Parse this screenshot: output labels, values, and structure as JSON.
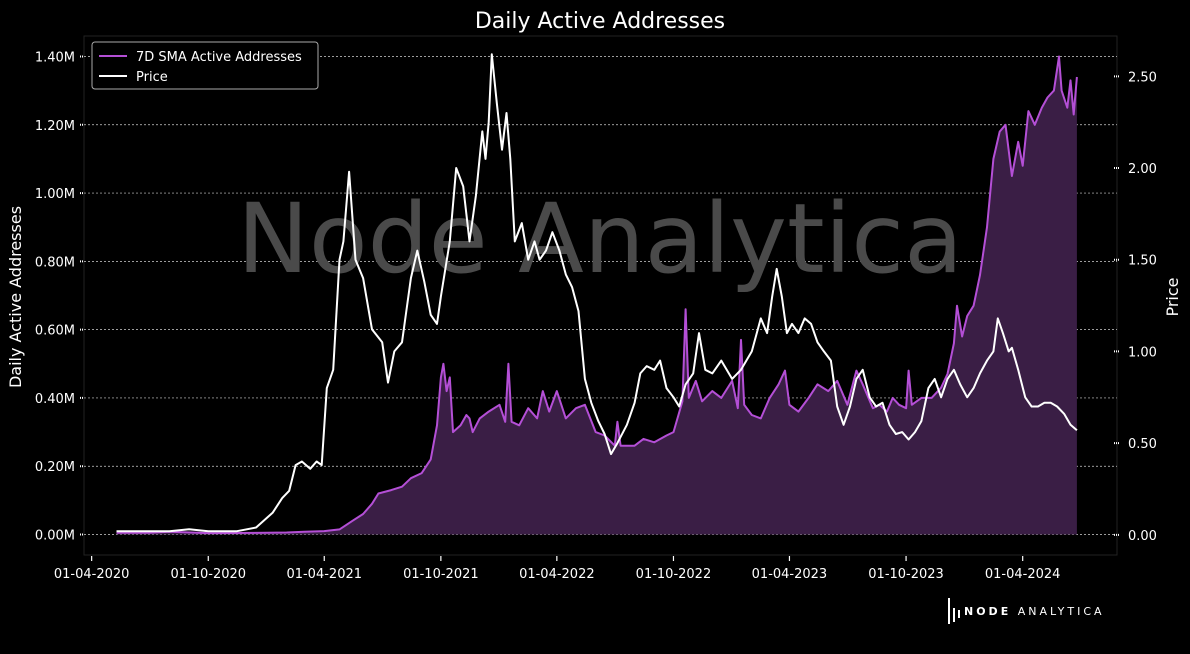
{
  "chart_data": {
    "type": "area",
    "title": "Daily Active Addresses",
    "watermark": "Node Analytica",
    "y_left_label": "Daily Active Addresses",
    "y_right_label": "Price",
    "left_ylim": [
      -60000,
      1460000
    ],
    "right_ylim": [
      -0.11,
      2.72
    ],
    "xlim": [
      "2020-03-20",
      "2024-08-27"
    ],
    "left_ticks": [
      {
        "value": 0,
        "label": "0.00M"
      },
      {
        "value": 200000,
        "label": "0.20M"
      },
      {
        "value": 400000,
        "label": "0.40M"
      },
      {
        "value": 600000,
        "label": "0.60M"
      },
      {
        "value": 800000,
        "label": "0.80M"
      },
      {
        "value": 1000000,
        "label": "1.00M"
      },
      {
        "value": 1200000,
        "label": "1.20M"
      },
      {
        "value": 1400000,
        "label": "1.40M"
      }
    ],
    "right_ticks": [
      {
        "value": 0.0,
        "label": "0.00"
      },
      {
        "value": 0.5,
        "label": "0.50"
      },
      {
        "value": 1.0,
        "label": "1.00"
      },
      {
        "value": 1.5,
        "label": "1.50"
      },
      {
        "value": 2.0,
        "label": "2.00"
      },
      {
        "value": 2.5,
        "label": "2.50"
      }
    ],
    "x_ticks": [
      {
        "value": "2020-04-01",
        "label": "01-04-2020"
      },
      {
        "value": "2020-10-01",
        "label": "01-10-2020"
      },
      {
        "value": "2021-04-01",
        "label": "01-04-2021"
      },
      {
        "value": "2021-10-01",
        "label": "01-10-2021"
      },
      {
        "value": "2022-04-01",
        "label": "01-04-2022"
      },
      {
        "value": "2022-10-01",
        "label": "01-10-2022"
      },
      {
        "value": "2023-04-01",
        "label": "01-04-2023"
      },
      {
        "value": "2023-10-01",
        "label": "01-10-2023"
      },
      {
        "value": "2024-04-01",
        "label": "01-04-2024"
      }
    ],
    "grid": "horizontal dashed",
    "legend_position": "top-left",
    "series": [
      {
        "name": "7D SMA Active Addresses",
        "axis": "left",
        "color": "#b44fd6",
        "fill": "#3a1e45",
        "points": [
          [
            "2020-05-10",
            5000
          ],
          [
            "2020-07-01",
            5000
          ],
          [
            "2020-08-01",
            8000
          ],
          [
            "2020-10-01",
            4000
          ],
          [
            "2021-01-01",
            5000
          ],
          [
            "2021-02-01",
            6000
          ],
          [
            "2021-03-01",
            8000
          ],
          [
            "2021-04-01",
            10000
          ],
          [
            "2021-04-25",
            15000
          ],
          [
            "2021-05-15",
            40000
          ],
          [
            "2021-06-01",
            60000
          ],
          [
            "2021-06-15",
            90000
          ],
          [
            "2021-06-25",
            120000
          ],
          [
            "2021-07-15",
            130000
          ],
          [
            "2021-08-01",
            140000
          ],
          [
            "2021-08-15",
            165000
          ],
          [
            "2021-09-01",
            180000
          ],
          [
            "2021-09-15",
            220000
          ],
          [
            "2021-09-25",
            320000
          ],
          [
            "2021-10-01",
            460000
          ],
          [
            "2021-10-05",
            500000
          ],
          [
            "2021-10-10",
            420000
          ],
          [
            "2021-10-15",
            460000
          ],
          [
            "2021-10-20",
            300000
          ],
          [
            "2021-11-01",
            320000
          ],
          [
            "2021-11-10",
            350000
          ],
          [
            "2021-11-15",
            340000
          ],
          [
            "2021-11-20",
            300000
          ],
          [
            "2021-12-01",
            340000
          ],
          [
            "2021-12-15",
            360000
          ],
          [
            "2022-01-01",
            380000
          ],
          [
            "2022-01-10",
            330000
          ],
          [
            "2022-01-15",
            500000
          ],
          [
            "2022-01-20",
            330000
          ],
          [
            "2022-02-01",
            320000
          ],
          [
            "2022-02-15",
            370000
          ],
          [
            "2022-03-01",
            340000
          ],
          [
            "2022-03-10",
            420000
          ],
          [
            "2022-03-20",
            360000
          ],
          [
            "2022-04-01",
            420000
          ],
          [
            "2022-04-15",
            340000
          ],
          [
            "2022-05-01",
            370000
          ],
          [
            "2022-05-15",
            380000
          ],
          [
            "2022-06-01",
            300000
          ],
          [
            "2022-06-15",
            290000
          ],
          [
            "2022-07-01",
            260000
          ],
          [
            "2022-07-05",
            330000
          ],
          [
            "2022-07-10",
            260000
          ],
          [
            "2022-08-01",
            260000
          ],
          [
            "2022-08-15",
            280000
          ],
          [
            "2022-09-01",
            270000
          ],
          [
            "2022-09-20",
            290000
          ],
          [
            "2022-10-01",
            300000
          ],
          [
            "2022-10-15",
            390000
          ],
          [
            "2022-10-20",
            660000
          ],
          [
            "2022-10-25",
            400000
          ],
          [
            "2022-11-05",
            450000
          ],
          [
            "2022-11-15",
            390000
          ],
          [
            "2022-12-01",
            420000
          ],
          [
            "2022-12-15",
            400000
          ],
          [
            "2023-01-01",
            450000
          ],
          [
            "2023-01-10",
            370000
          ],
          [
            "2023-01-15",
            570000
          ],
          [
            "2023-01-20",
            380000
          ],
          [
            "2023-02-01",
            350000
          ],
          [
            "2023-02-15",
            340000
          ],
          [
            "2023-03-01",
            400000
          ],
          [
            "2023-03-15",
            440000
          ],
          [
            "2023-03-25",
            480000
          ],
          [
            "2023-04-01",
            380000
          ],
          [
            "2023-04-15",
            360000
          ],
          [
            "2023-05-01",
            400000
          ],
          [
            "2023-05-15",
            440000
          ],
          [
            "2023-06-01",
            420000
          ],
          [
            "2023-06-15",
            450000
          ],
          [
            "2023-07-01",
            380000
          ],
          [
            "2023-07-15",
            480000
          ],
          [
            "2023-07-25",
            440000
          ],
          [
            "2023-08-10",
            370000
          ],
          [
            "2023-08-20",
            380000
          ],
          [
            "2023-09-01",
            360000
          ],
          [
            "2023-09-10",
            400000
          ],
          [
            "2023-09-20",
            380000
          ],
          [
            "2023-10-01",
            370000
          ],
          [
            "2023-10-05",
            480000
          ],
          [
            "2023-10-10",
            380000
          ],
          [
            "2023-10-25",
            400000
          ],
          [
            "2023-11-10",
            400000
          ],
          [
            "2023-11-25",
            430000
          ],
          [
            "2023-12-05",
            470000
          ],
          [
            "2023-12-15",
            560000
          ],
          [
            "2023-12-20",
            670000
          ],
          [
            "2023-12-28",
            580000
          ],
          [
            "2024-01-05",
            640000
          ],
          [
            "2024-01-15",
            670000
          ],
          [
            "2024-01-25",
            760000
          ],
          [
            "2024-02-05",
            900000
          ],
          [
            "2024-02-15",
            1100000
          ],
          [
            "2024-02-25",
            1180000
          ],
          [
            "2024-03-05",
            1200000
          ],
          [
            "2024-03-15",
            1050000
          ],
          [
            "2024-03-25",
            1150000
          ],
          [
            "2024-04-01",
            1080000
          ],
          [
            "2024-04-10",
            1240000
          ],
          [
            "2024-04-20",
            1200000
          ],
          [
            "2024-05-01",
            1250000
          ],
          [
            "2024-05-10",
            1280000
          ],
          [
            "2024-05-20",
            1300000
          ],
          [
            "2024-05-28",
            1400000
          ],
          [
            "2024-06-01",
            1300000
          ],
          [
            "2024-06-10",
            1250000
          ],
          [
            "2024-06-15",
            1330000
          ],
          [
            "2024-06-20",
            1230000
          ],
          [
            "2024-06-25",
            1340000
          ]
        ]
      },
      {
        "name": "Price",
        "axis": "right",
        "color": "#ffffff",
        "points": [
          [
            "2020-05-10",
            0.02
          ],
          [
            "2020-08-01",
            0.02
          ],
          [
            "2020-09-01",
            0.03
          ],
          [
            "2020-10-01",
            0.02
          ],
          [
            "2020-11-15",
            0.02
          ],
          [
            "2020-12-15",
            0.04
          ],
          [
            "2021-01-10",
            0.12
          ],
          [
            "2021-01-25",
            0.2
          ],
          [
            "2021-02-05",
            0.24
          ],
          [
            "2021-02-15",
            0.38
          ],
          [
            "2021-02-25",
            0.4
          ],
          [
            "2021-03-10",
            0.36
          ],
          [
            "2021-03-20",
            0.4
          ],
          [
            "2021-03-28",
            0.38
          ],
          [
            "2021-04-05",
            0.8
          ],
          [
            "2021-04-15",
            0.9
          ],
          [
            "2021-04-25",
            1.5
          ],
          [
            "2021-05-01",
            1.6
          ],
          [
            "2021-05-10",
            1.98
          ],
          [
            "2021-05-20",
            1.5
          ],
          [
            "2021-06-01",
            1.4
          ],
          [
            "2021-06-15",
            1.12
          ],
          [
            "2021-07-01",
            1.05
          ],
          [
            "2021-07-10",
            0.83
          ],
          [
            "2021-07-20",
            1.0
          ],
          [
            "2021-08-01",
            1.05
          ],
          [
            "2021-08-15",
            1.4
          ],
          [
            "2021-08-25",
            1.55
          ],
          [
            "2021-09-05",
            1.38
          ],
          [
            "2021-09-15",
            1.2
          ],
          [
            "2021-09-25",
            1.15
          ],
          [
            "2021-10-01",
            1.3
          ],
          [
            "2021-10-15",
            1.6
          ],
          [
            "2021-10-25",
            2.0
          ],
          [
            "2021-11-05",
            1.9
          ],
          [
            "2021-11-15",
            1.6
          ],
          [
            "2021-11-25",
            1.85
          ],
          [
            "2021-12-05",
            2.2
          ],
          [
            "2021-12-10",
            2.05
          ],
          [
            "2021-12-15",
            2.25
          ],
          [
            "2021-12-20",
            2.62
          ],
          [
            "2021-12-28",
            2.35
          ],
          [
            "2022-01-05",
            2.1
          ],
          [
            "2022-01-12",
            2.3
          ],
          [
            "2022-01-18",
            2.05
          ],
          [
            "2022-01-25",
            1.6
          ],
          [
            "2022-02-05",
            1.7
          ],
          [
            "2022-02-15",
            1.5
          ],
          [
            "2022-02-25",
            1.6
          ],
          [
            "2022-03-05",
            1.5
          ],
          [
            "2022-03-15",
            1.55
          ],
          [
            "2022-03-25",
            1.65
          ],
          [
            "2022-04-05",
            1.55
          ],
          [
            "2022-04-15",
            1.42
          ],
          [
            "2022-04-25",
            1.35
          ],
          [
            "2022-05-05",
            1.22
          ],
          [
            "2022-05-15",
            0.85
          ],
          [
            "2022-05-25",
            0.72
          ],
          [
            "2022-06-05",
            0.62
          ],
          [
            "2022-06-15",
            0.55
          ],
          [
            "2022-06-25",
            0.44
          ],
          [
            "2022-07-05",
            0.5
          ],
          [
            "2022-07-20",
            0.6
          ],
          [
            "2022-08-01",
            0.72
          ],
          [
            "2022-08-10",
            0.88
          ],
          [
            "2022-08-20",
            0.92
          ],
          [
            "2022-09-01",
            0.9
          ],
          [
            "2022-09-10",
            0.95
          ],
          [
            "2022-09-20",
            0.8
          ],
          [
            "2022-10-01",
            0.75
          ],
          [
            "2022-10-10",
            0.7
          ],
          [
            "2022-10-20",
            0.82
          ],
          [
            "2022-11-01",
            0.88
          ],
          [
            "2022-11-10",
            1.1
          ],
          [
            "2022-11-20",
            0.9
          ],
          [
            "2022-12-01",
            0.88
          ],
          [
            "2022-12-15",
            0.95
          ],
          [
            "2023-01-01",
            0.85
          ],
          [
            "2023-01-15",
            0.9
          ],
          [
            "2023-02-01",
            1.0
          ],
          [
            "2023-02-15",
            1.18
          ],
          [
            "2023-02-25",
            1.1
          ],
          [
            "2023-03-05",
            1.3
          ],
          [
            "2023-03-12",
            1.45
          ],
          [
            "2023-03-20",
            1.3
          ],
          [
            "2023-03-28",
            1.1
          ],
          [
            "2023-04-05",
            1.15
          ],
          [
            "2023-04-15",
            1.1
          ],
          [
            "2023-04-25",
            1.18
          ],
          [
            "2023-05-05",
            1.15
          ],
          [
            "2023-05-15",
            1.05
          ],
          [
            "2023-05-25",
            1.0
          ],
          [
            "2023-06-05",
            0.95
          ],
          [
            "2023-06-15",
            0.7
          ],
          [
            "2023-06-25",
            0.6
          ],
          [
            "2023-07-05",
            0.7
          ],
          [
            "2023-07-15",
            0.85
          ],
          [
            "2023-07-25",
            0.9
          ],
          [
            "2023-08-05",
            0.75
          ],
          [
            "2023-08-15",
            0.7
          ],
          [
            "2023-08-25",
            0.72
          ],
          [
            "2023-09-05",
            0.6
          ],
          [
            "2023-09-15",
            0.55
          ],
          [
            "2023-09-25",
            0.56
          ],
          [
            "2023-10-05",
            0.52
          ],
          [
            "2023-10-15",
            0.56
          ],
          [
            "2023-10-25",
            0.62
          ],
          [
            "2023-11-05",
            0.8
          ],
          [
            "2023-11-15",
            0.85
          ],
          [
            "2023-11-25",
            0.75
          ],
          [
            "2023-12-05",
            0.85
          ],
          [
            "2023-12-15",
            0.9
          ],
          [
            "2023-12-25",
            0.82
          ],
          [
            "2024-01-05",
            0.75
          ],
          [
            "2024-01-15",
            0.8
          ],
          [
            "2024-01-25",
            0.88
          ],
          [
            "2024-02-05",
            0.95
          ],
          [
            "2024-02-15",
            1.0
          ],
          [
            "2024-02-22",
            1.18
          ],
          [
            "2024-03-01",
            1.1
          ],
          [
            "2024-03-10",
            1.0
          ],
          [
            "2024-03-15",
            1.02
          ],
          [
            "2024-03-25",
            0.9
          ],
          [
            "2024-04-05",
            0.75
          ],
          [
            "2024-04-15",
            0.7
          ],
          [
            "2024-04-25",
            0.7
          ],
          [
            "2024-05-05",
            0.72
          ],
          [
            "2024-05-15",
            0.72
          ],
          [
            "2024-05-25",
            0.7
          ],
          [
            "2024-06-05",
            0.66
          ],
          [
            "2024-06-15",
            0.6
          ],
          [
            "2024-06-25",
            0.57
          ]
        ]
      }
    ]
  },
  "branding": {
    "bold": "NODE",
    "light": "ANALYTICA"
  }
}
